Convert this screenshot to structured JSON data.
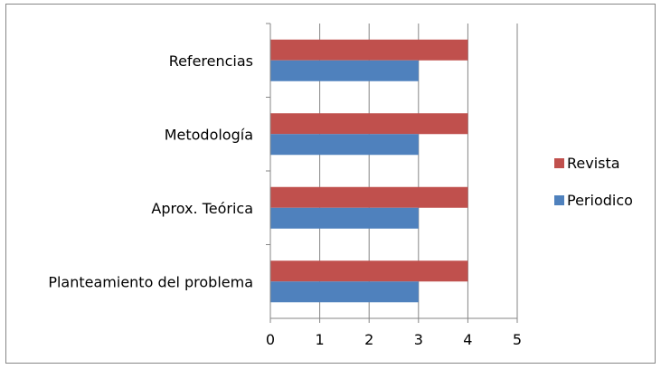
{
  "chart_data": {
    "type": "bar",
    "orientation": "horizontal",
    "title": "",
    "xlabel": "",
    "ylabel": "",
    "categories": [
      "Referencias",
      "Metodología",
      "Aprox. Teórica",
      "Planteamiento del problema"
    ],
    "series": [
      {
        "name": "Revista",
        "color": "#C0504D",
        "values": [
          4,
          4,
          4,
          4
        ]
      },
      {
        "name": "Periodico",
        "color": "#4F81BD",
        "values": [
          3,
          3,
          3,
          3
        ]
      }
    ],
    "xlim": [
      0,
      5
    ],
    "xticks": [
      "0",
      "1",
      "2",
      "3",
      "4",
      "5"
    ],
    "grid": "vertical",
    "legend_position": "right"
  }
}
